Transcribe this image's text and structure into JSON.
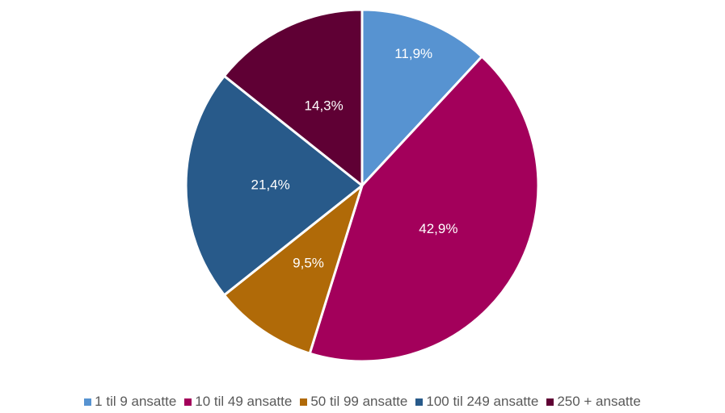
{
  "chart_data": {
    "type": "pie",
    "categories": [
      "1 til 9 ansatte",
      "10 til 49 ansatte",
      "50 til 99 ansatte",
      "100 til 249 ansatte",
      "250 + ansatte"
    ],
    "values": [
      11.9,
      42.9,
      9.5,
      21.4,
      14.3
    ],
    "value_labels": [
      "11,9%",
      "42,9%",
      "9,5%",
      "21,4%",
      "14,3%"
    ],
    "colors": [
      "#5793d1",
      "#a3005b",
      "#b06a08",
      "#285a8a",
      "#5f0034"
    ],
    "legend": "bottom"
  }
}
